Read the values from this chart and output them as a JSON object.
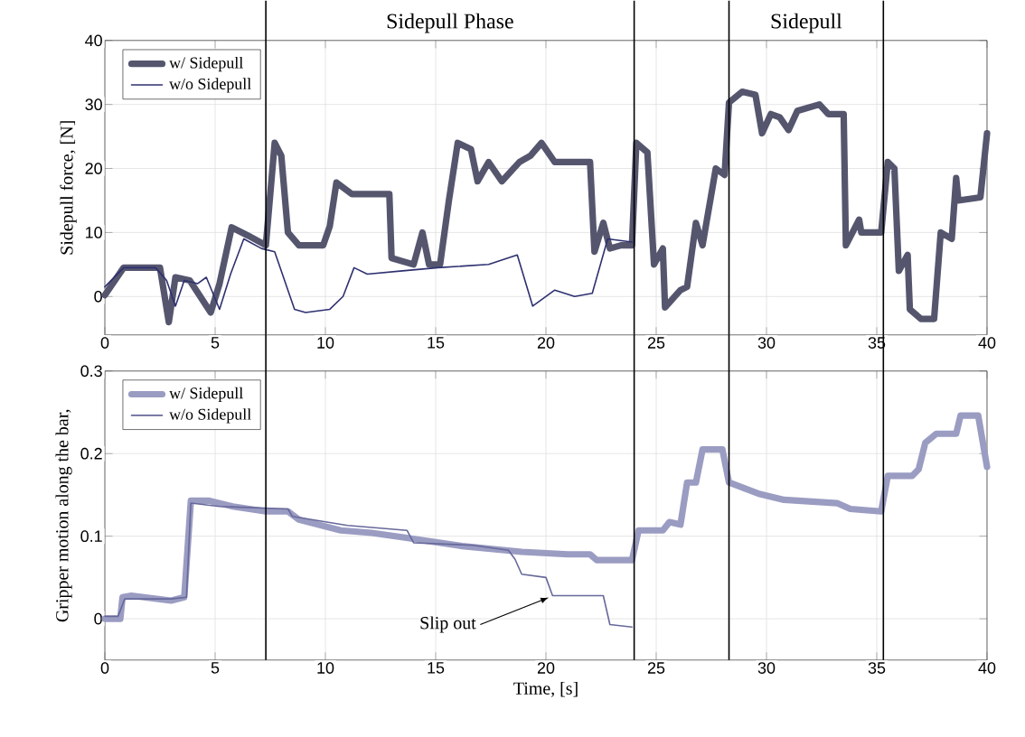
{
  "chart_data": [
    {
      "type": "line",
      "ylabel": "Sidepull force, [N]",
      "xlim": [
        0,
        40
      ],
      "ylim": [
        -6,
        40
      ],
      "xticks": [
        0,
        5,
        10,
        15,
        20,
        25,
        30,
        35,
        40
      ],
      "yticks": [
        0,
        10,
        20,
        30,
        40
      ],
      "grid": true,
      "legend": "top left",
      "ref_lines": [
        {
          "axis": "x",
          "value": 7.3
        },
        {
          "axis": "x",
          "value": 24
        },
        {
          "axis": "x",
          "value": 28.3
        },
        {
          "axis": "x",
          "value": 35.3
        }
      ],
      "annotations": [
        "Sidepull Phase",
        "Sidepull"
      ],
      "series": [
        {
          "name": "w/ Sidepull",
          "color": "#55566e",
          "x": [
            0,
            0.85,
            2.5,
            2.9,
            3.2,
            3.85,
            4.8,
            5.2,
            5.75,
            6.5,
            7.3,
            7.7,
            8.0,
            8.3,
            8.8,
            9.9,
            10.2,
            10.5,
            11.2,
            12.9,
            13.0,
            14.0,
            14.4,
            14.7,
            15.2,
            15.6,
            16.0,
            16.6,
            16.9,
            17.4,
            18.0,
            18.8,
            19.3,
            19.8,
            20.4,
            22.0,
            22.2,
            22.6,
            22.9,
            23.4,
            23.9,
            24.1,
            24.6,
            24.9,
            25.3,
            25.4,
            26.1,
            26.4,
            26.8,
            27.1,
            27.7,
            28.1,
            28.3,
            28.9,
            29.5,
            29.8,
            30.2,
            30.6,
            31.0,
            31.4,
            32.4,
            32.8,
            33.5,
            33.6,
            34.2,
            34.3,
            35.2,
            35.5,
            35.8,
            36.0,
            36.4,
            36.5,
            37.0,
            37.6,
            37.9,
            38.4,
            38.6,
            38.7,
            39.7,
            40
          ],
          "values": [
            0.2,
            4.5,
            4.5,
            -4,
            3,
            2.5,
            -2.5,
            2,
            10.8,
            9.5,
            8,
            24,
            22,
            10,
            8,
            8,
            11,
            17.8,
            16,
            16,
            6,
            5,
            10,
            5,
            5,
            15,
            24,
            23,
            18,
            21,
            18,
            21,
            22,
            24,
            21,
            21,
            7,
            11.5,
            7.5,
            8,
            8,
            24,
            22.5,
            5,
            7.5,
            -1.7,
            1,
            1.5,
            11.5,
            8,
            20,
            19,
            30.3,
            32,
            31.5,
            25.5,
            28.5,
            28,
            26,
            29,
            30,
            28.5,
            28.5,
            8,
            12,
            10,
            10,
            21,
            20,
            4,
            6.5,
            -2,
            -3.5,
            -3.5,
            10,
            9,
            18.5,
            15,
            15.5,
            25.5
          ]
        },
        {
          "name": "w/o Sidepull",
          "color": "#2e3070",
          "x": [
            0,
            0.85,
            2.3,
            2.8,
            3.2,
            3.6,
            4.2,
            4.6,
            5.2,
            5.7,
            6.3,
            7.1,
            7.7,
            8.6,
            9.1,
            10.2,
            10.8,
            11.3,
            11.9,
            13.5,
            15.1,
            17.4,
            18.7,
            19.4,
            20.4,
            21.3,
            22.1,
            22.8,
            23.9
          ],
          "values": [
            1.5,
            4.5,
            4.5,
            2.5,
            -1.5,
            2.5,
            2,
            3,
            -2,
            3.5,
            9,
            7.5,
            7,
            -2,
            -2.5,
            -2,
            0,
            4.5,
            3.5,
            4,
            4.5,
            5,
            6.5,
            -1.5,
            1,
            0,
            0.5,
            9,
            8.5
          ]
        }
      ]
    },
    {
      "type": "line",
      "xlabel": "Time, [s]",
      "ylabel": "Gripper motion along the bar,",
      "xlim": [
        0,
        40
      ],
      "ylim": [
        -0.05,
        0.3
      ],
      "xticks": [
        0,
        5,
        10,
        15,
        20,
        25,
        30,
        35,
        40
      ],
      "yticks": [
        0,
        0.1,
        0.2,
        0.3
      ],
      "grid": true,
      "legend": "top left",
      "ref_lines": [
        {
          "axis": "x",
          "value": 7.3
        },
        {
          "axis": "x",
          "value": 24
        },
        {
          "axis": "x",
          "value": 28.3
        },
        {
          "axis": "x",
          "value": 35.3
        }
      ],
      "annotations": [
        {
          "text": "Slip out",
          "x": 20.3,
          "y": 0.028
        }
      ],
      "series": [
        {
          "name": "w/ Sidepull",
          "color": "#9b9cc2",
          "x": [
            0,
            0.7,
            0.8,
            1.2,
            3.0,
            3.6,
            3.9,
            4.7,
            5.8,
            7.3,
            8.3,
            8.8,
            10.7,
            12.1,
            13.4,
            16.2,
            18.9,
            21.0,
            22.0,
            22.3,
            23.9,
            24.2,
            25.3,
            25.6,
            26.1,
            26.4,
            26.8,
            27.1,
            28.0,
            28.3,
            29.7,
            30.8,
            33.2,
            33.8,
            35.2,
            35.5,
            36.6,
            36.9,
            37.2,
            37.7,
            38.6,
            38.8,
            39.6,
            40
          ],
          "values": [
            0,
            0,
            0.026,
            0.028,
            0.022,
            0.026,
            0.143,
            0.143,
            0.136,
            0.13,
            0.13,
            0.12,
            0.107,
            0.104,
            0.099,
            0.088,
            0.081,
            0.078,
            0.078,
            0.071,
            0.071,
            0.107,
            0.107,
            0.117,
            0.114,
            0.165,
            0.165,
            0.205,
            0.205,
            0.165,
            0.151,
            0.144,
            0.14,
            0.133,
            0.13,
            0.173,
            0.173,
            0.181,
            0.213,
            0.224,
            0.224,
            0.246,
            0.246,
            0.184
          ]
        },
        {
          "name": "w/o Sidepull",
          "color": "#66689a",
          "x": [
            0,
            0.6,
            0.9,
            3.0,
            3.7,
            3.9,
            5.2,
            8.3,
            8.5,
            11,
            13.7,
            14,
            16.7,
            18.3,
            18.6,
            18.9,
            20.0,
            20.3,
            22.6,
            22.9,
            23.9
          ],
          "values": [
            0.003,
            0.003,
            0.024,
            0.024,
            0.026,
            0.14,
            0.136,
            0.133,
            0.124,
            0.113,
            0.107,
            0.092,
            0.089,
            0.083,
            0.072,
            0.054,
            0.05,
            0.028,
            0.028,
            -0.007,
            -0.01
          ]
        }
      ]
    }
  ]
}
